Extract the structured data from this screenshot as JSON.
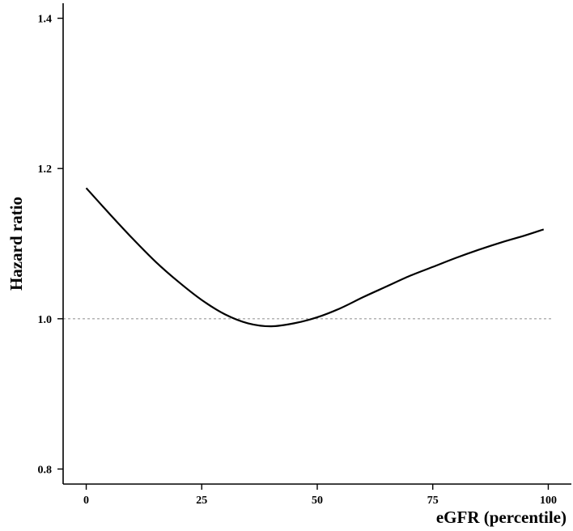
{
  "chart_data": {
    "type": "line",
    "title": "",
    "xlabel": "eGFR (percentile)",
    "ylabel": "Hazard ratio",
    "xlim": [
      -5,
      105
    ],
    "ylim": [
      0.78,
      1.42
    ],
    "x_ticks": [
      0,
      25,
      50,
      75,
      100
    ],
    "x_tick_labels": [
      "0",
      "25",
      "50",
      "75",
      "100"
    ],
    "y_ticks": [
      0.8,
      1.0,
      1.2,
      1.4
    ],
    "y_tick_labels": [
      "0.8",
      "1.0",
      "1.2",
      "1.4"
    ],
    "grid": false,
    "reference_line": {
      "y": 1.0,
      "style": "dotted",
      "color": "#9a9a9a"
    },
    "series": [
      {
        "color": "#000000",
        "x": [
          0,
          5,
          10,
          15,
          20,
          25,
          30,
          35,
          40,
          45,
          50,
          55,
          60,
          65,
          70,
          75,
          80,
          85,
          90,
          95,
          99
        ],
        "y": [
          1.174,
          1.14,
          1.107,
          1.076,
          1.049,
          1.025,
          1.006,
          0.994,
          0.99,
          0.994,
          1.002,
          1.014,
          1.029,
          1.043,
          1.057,
          1.069,
          1.081,
          1.092,
          1.102,
          1.111,
          1.119
        ]
      }
    ]
  }
}
